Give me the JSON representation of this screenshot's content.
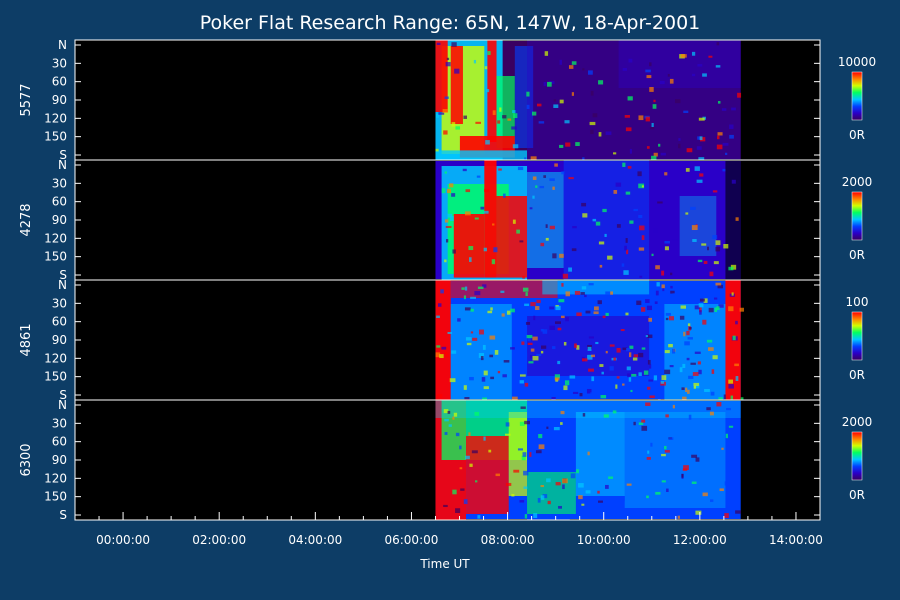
{
  "chart_data": {
    "type": "heatmap",
    "title": "Poker Flat Research Range: 65N, 147W, 18-Apr-2001",
    "xlabel": "Time UT",
    "x_ticks": [
      "00:00:00",
      "02:00:00",
      "04:00:00",
      "06:00:00",
      "08:00:00",
      "10:00:00",
      "12:00:00",
      "14:00:00"
    ],
    "x_range_hours": [
      -1,
      14.5
    ],
    "data_coverage_hours": [
      6.5,
      12.85
    ],
    "y_ticks": [
      "N",
      "30",
      "60",
      "90",
      "120",
      "150",
      "S"
    ],
    "y_range_deg": [
      0,
      180
    ],
    "colormap": [
      "#3a0060",
      "#2a00c8",
      "#0040ff",
      "#00c8ff",
      "#00ff60",
      "#d0ff00",
      "#ff8000",
      "#ff0000"
    ],
    "panels": [
      {
        "name": "5577",
        "cb_max": "10000",
        "cb_min": "0R"
      },
      {
        "name": "4278",
        "cb_max": "2000",
        "cb_min": "0R"
      },
      {
        "name": "4861",
        "cb_max": "100",
        "cb_min": "0R"
      },
      {
        "name": "6300",
        "cb_max": "2000",
        "cb_min": "0R"
      }
    ]
  }
}
